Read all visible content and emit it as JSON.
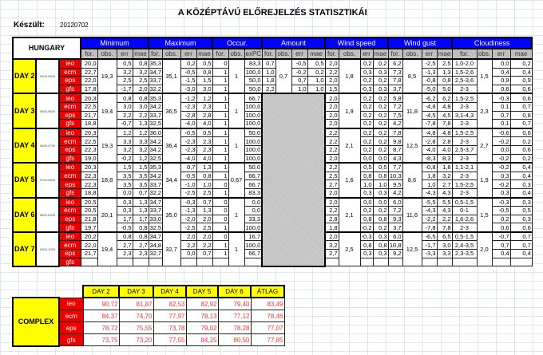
{
  "title": "A KÖZÉPTÁVÚ ELŐREJELZÉS STATISZTIKÁI",
  "made_label": "Készült:",
  "made_value": "20120702",
  "region": "HUNGARY",
  "sections": [
    "Minimum",
    "Maximum",
    "Occur.",
    "Amount",
    "Wind speed",
    "Wind gust",
    "Cloudiness"
  ],
  "subheaders": {
    "min": [
      "for.",
      "obs.",
      "err",
      "mae"
    ],
    "max": [
      "for.",
      "obs.",
      "err",
      "mae"
    ],
    "occ": [
      "for.",
      "obs.",
      "exPC"
    ],
    "amt": [
      "for.",
      "obs.",
      "err",
      "mae"
    ],
    "ws": [
      "for.",
      "obs.",
      "err",
      "mae"
    ],
    "wg": [
      "for.",
      "obs.",
      "err",
      "mae"
    ],
    "cl": [
      "for.",
      "obs.",
      "err",
      "mae"
    ]
  },
  "colors": {
    "section": "#0000ff",
    "day": "#ffff00",
    "model": "#ee0000",
    "missing": "#c8c8c8"
  },
  "days": [
    {
      "label": "DAY 2",
      "date": "0400-0500",
      "obs": [
        "19,3",
        "35,1",
        "1",
        "0,7",
        "1,8",
        "8,5",
        "1,5"
      ],
      "models": [
        {
          "name": "ieo",
          "cells": [
            "20,0",
            "0,5",
            "0,8",
            "35,3",
            "0,2",
            "0,5",
            "0",
            "83,3",
            "0,7",
            "-0,5",
            "0,5",
            "2,0",
            "0,2",
            "0,2",
            "6,2",
            "-2,5",
            "2,5",
            "1,0-2,0",
            "0,0",
            "0,2"
          ]
        },
        {
          "name": "ecm",
          "cells": [
            "22,7",
            "3,2",
            "3,2",
            "34,7",
            "-0,5",
            "0,8",
            "1",
            "100,0",
            "1,0",
            "-0,2",
            "0,2",
            "2,2",
            "0,3",
            "0,3",
            "7,3",
            "-1,3",
            "1,3",
            "1,5-2,6",
            "0,4",
            "0,4"
          ]
        },
        {
          "name": "eps",
          "cells": [
            "22,0",
            "2,5",
            "2,5",
            "33,7",
            "-1,5",
            "1,5",
            "1",
            "50,0",
            "1,8",
            "0,7",
            "1,0",
            "2,0",
            "0,2",
            "0,2",
            "7,8",
            "-0,8",
            "0,8",
            "2,5-3,6",
            "0,9",
            "0,9"
          ]
        },
        {
          "name": "gfs",
          "cells": [
            "17,8",
            "-1,7",
            "2,0",
            "32,2",
            "-3,0",
            "3,0",
            "1",
            "50,0",
            "2,2",
            "1,0",
            "1,0",
            "1,5",
            "-0,3",
            "0,3",
            "3,7",
            "-5,0",
            "5,0",
            "2-3",
            "0,6",
            "0,6"
          ]
        }
      ]
    },
    {
      "label": "DAY 3",
      "date": "0500-0600",
      "obs": [
        "19,4",
        "36,5",
        "1",
        "",
        "1,9",
        "11,8",
        "2,3"
      ],
      "models": [
        {
          "name": "ieo",
          "cells": [
            "20,3",
            "0,8",
            "0,8",
            "35,3",
            "-1,2",
            "1,2",
            "1",
            "66,7",
            "",
            "",
            "",
            "2,0",
            "0,2",
            "0,2",
            "5,8",
            "-6,2",
            "6,2",
            "1,5-2,5",
            "-0,3",
            "0,6"
          ]
        },
        {
          "name": "ecm",
          "cells": [
            "22,5",
            "3,0",
            "3,0",
            "34,2",
            "-2,3",
            "2,3",
            "1",
            "100,0",
            "",
            "",
            "",
            "2,0",
            "0,2",
            "0,2",
            "7,2",
            "-4,8",
            "4,8",
            "2-3",
            "0,1",
            "0,7"
          ]
        },
        {
          "name": "eps",
          "cells": [
            "21,7",
            "2,2",
            "2,2",
            "33,7",
            "-2,8",
            "2,8",
            "1",
            "100,0",
            "",
            "",
            "",
            "2,0",
            "0,2",
            "0,2",
            "7,5",
            "-4,5",
            "4,5",
            "3,1-4,3",
            "0,7",
            "0,8"
          ]
        },
        {
          "name": "gfs",
          "cells": [
            "18,8",
            "-0,7",
            "1,3",
            "32,5",
            "-4,0",
            "4,0",
            "1",
            "100,0",
            "",
            "",
            "",
            "2,0",
            "0,2",
            "0,2",
            "4,2",
            "-7,8",
            "7,8",
            "2-3",
            "0,1",
            "0,7"
          ]
        }
      ]
    },
    {
      "label": "DAY 4",
      "date": "0600-0700",
      "obs": [
        "19,3",
        "36,4",
        "1",
        "",
        "2,1",
        "12,5",
        "2,7"
      ],
      "models": [
        {
          "name": "ieo",
          "cells": [
            "20,3",
            "1,2",
            "1,2",
            "36,0",
            "-0,5",
            "0,5",
            "1",
            "50,0",
            "",
            "",
            "",
            "2,2",
            "0,2",
            "0,2",
            "7,8",
            "-4,8",
            "4,8",
            "1,5-2,5",
            "-0,6",
            "0,6"
          ]
        },
        {
          "name": "ecm",
          "cells": [
            "22,5",
            "3,3",
            "3,3",
            "34,2",
            "-2,3",
            "2,3",
            "1",
            "100,0",
            "",
            "",
            "",
            "2,2",
            "0,2",
            "0,2",
            "9,8",
            "-2,8",
            "2,8",
            "2-3",
            "-0,2",
            "0,2"
          ]
        },
        {
          "name": "eps",
          "cells": [
            "22,3",
            "3,2",
            "3,2",
            "34,2",
            "-2,3",
            "2,3",
            "1",
            "100,0",
            "",
            "",
            "",
            "2,2",
            "0,2",
            "0,2",
            "8,7",
            "-4,0",
            "4,0",
            "2,5-3,7",
            "0,0",
            "0,6"
          ]
        },
        {
          "name": "gfs",
          "cells": [
            "19,0",
            "-0,2",
            "1,2",
            "32,5",
            "-4,0",
            "4,0",
            "1",
            "100,0",
            "",
            "",
            "",
            "2,0",
            "0,0",
            "0,0",
            "4,3",
            "-8,3",
            "8,3",
            "2-3",
            "-0,2",
            "0,2"
          ]
        }
      ]
    },
    {
      "label": "DAY 5",
      "date": "0700-0800",
      "obs": [
        "18,8",
        "34,4",
        "0,67",
        "",
        "1,6",
        "8,6",
        "1,9"
      ],
      "models": [
        {
          "name": "ieo",
          "cells": [
            "20,3",
            "1,5",
            "1,5",
            "35,3",
            "0,7",
            "1,3",
            "1",
            "50,0",
            "",
            "",
            "",
            "2,2",
            "0,5",
            "0,5",
            "7,7",
            "-0,8",
            "1,8",
            "1,1-2,1",
            "-0,2",
            "0,4"
          ]
        },
        {
          "name": "ecm",
          "cells": [
            "22,3",
            "3,5",
            "3,5",
            "34,2",
            "-0,5",
            "0,8",
            "1",
            "66,7",
            "",
            "",
            "",
            "2,5",
            "0,8",
            "0,8",
            "10,3",
            "1,8",
            "3,2",
            "2-3",
            "0,3",
            "0,4"
          ]
        },
        {
          "name": "eps",
          "cells": [
            "22,3",
            "3,5",
            "3,5",
            "33,7",
            "-1,0",
            "1,0",
            "0",
            "66,7",
            "",
            "",
            "",
            "2,7",
            "1,0",
            "1,0",
            "9,5",
            "1,0",
            "2,7",
            "1,5-2,5",
            "-0,2",
            "0,3"
          ]
        },
        {
          "name": "gfs",
          "cells": [
            "18,8",
            "0,0",
            "0,7",
            "32,2",
            "-2,5",
            "2,5",
            "1",
            "83,3",
            "",
            "",
            "",
            "2,0",
            "0,3",
            "0,3",
            "4,2",
            "-4,3",
            "4,3",
            "2-3",
            "0,3",
            "0,4"
          ]
        }
      ]
    },
    {
      "label": "DAY 6",
      "date": "0800-0900",
      "obs": [
        "20,1",
        "35,0",
        "1",
        "",
        "2,1",
        "11,6",
        "1,5"
      ],
      "models": [
        {
          "name": "ieo",
          "cells": [
            "20,5",
            "0,3",
            "1,3",
            "34,7",
            "-0,3",
            "0,7",
            "0",
            "0,0",
            "",
            "",
            "",
            "2,0",
            "0,0",
            "0,0",
            "6,0",
            "-5,5",
            "5,5",
            "0,5-1,5",
            "-0,3",
            "0,3"
          ]
        },
        {
          "name": "ecm",
          "cells": [
            "20,5",
            "0,3",
            "1,3",
            "33,7",
            "-1,3",
            "1,3",
            "0",
            "0,0",
            "",
            "",
            "",
            "2,2",
            "0,2",
            "0,2",
            "7,2",
            "-4,3",
            "4,3",
            "0-1",
            "-0,5",
            "0,5"
          ]
        },
        {
          "name": "eps",
          "cells": [
            "21,8",
            "1,7",
            "1,7",
            "33,0",
            "-2,0",
            "2,0",
            "0",
            "33,3",
            "",
            "",
            "",
            "2,8",
            "0,8",
            "0,8",
            "9,3",
            "-2,2",
            "2,2",
            "1,6-2,6",
            "0,2",
            "0,3"
          ]
        },
        {
          "name": "gfs",
          "cells": [
            "19,7",
            "-0,5",
            "0,8",
            "32,5",
            "-2,5",
            "2,5",
            "1",
            "100,0",
            "",
            "",
            "",
            "1,8",
            "-0,2",
            "0,2",
            "3,7",
            "-7,8",
            "7,8",
            "2-3",
            "0,6",
            "0,6"
          ]
        }
      ]
    },
    {
      "label": "DAY 7",
      "date": "0900-1000",
      "obs": [
        "19,4",
        "32,7",
        "1",
        "",
        "2,5",
        "12,5",
        "2,0"
      ],
      "models": [
        {
          "name": "ieo",
          "cells": [
            "20,2",
            "0,8",
            "0,8",
            "34,7",
            "2,0",
            "2,0",
            "0",
            "16,7",
            "",
            "",
            "",
            "2,0",
            "-0,3",
            "0,3",
            "6,0",
            "-6,5",
            "6,5",
            "0,5-1,5",
            "-0,7",
            "0,7"
          ]
        },
        {
          "name": "ecm",
          "cells": [
            "22,0",
            "2,7",
            "2,7",
            "34,8",
            "2,2",
            "2,2",
            "1",
            "100,0",
            "",
            "",
            "",
            "3,2",
            "0,8",
            "0,8",
            "10,8",
            "-1,7",
            "3,0",
            "2,4-3,5",
            "0,7",
            "0,7"
          ]
        },
        {
          "name": "eps",
          "cells": [
            "21,7",
            "2,3",
            "2,3",
            "32,7",
            "0,0",
            "0,7",
            "1",
            "66,7",
            "",
            "",
            "",
            "2,7",
            "0,3",
            "0,3",
            "9,2",
            "-3,3",
            "3,3",
            "2,3-3,5",
            "0,4",
            "0,4"
          ]
        },
        {
          "name": "gfs",
          "cells": [
            "",
            "",
            "",
            "",
            "",
            "",
            "",
            "",
            "",
            "",
            "",
            "",
            "",
            "",
            "",
            "",
            "",
            "",
            "",
            ""
          ]
        }
      ]
    }
  ],
  "complex": {
    "label": "COMPLEX",
    "headers": [
      "DAY 2",
      "DAY 3",
      "DAY 4",
      "DAY 5",
      "DAY 6",
      "ÁTLAG"
    ],
    "rows": [
      {
        "name": "ieo",
        "values": [
          "90,72",
          "81,87",
          "82,53",
          "82,92",
          "79,40",
          "83,49"
        ]
      },
      {
        "name": "ecm",
        "values": [
          "84,37",
          "74,70",
          "77,97",
          "78,13",
          "77,12",
          "78,46"
        ]
      },
      {
        "name": "eps",
        "values": [
          "78,72",
          "75,55",
          "73,78",
          "79,02",
          "78,28",
          "77,07"
        ]
      },
      {
        "name": "gfs",
        "values": [
          "73,75",
          "73,20",
          "77,55",
          "84,25",
          "80,50",
          "77,85"
        ]
      }
    ]
  }
}
